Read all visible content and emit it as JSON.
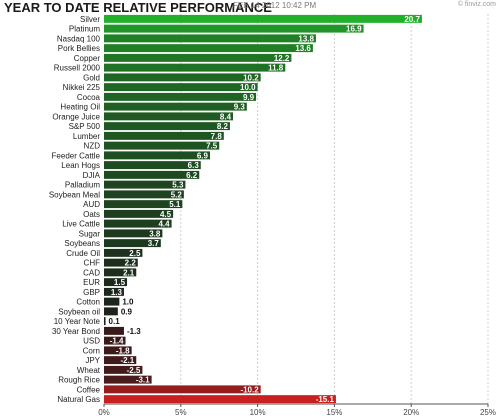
{
  "header": {
    "title": "YEAR TO DATE RELATIVE PERFORMANCE",
    "timestamp": "FEB 14 2012 10:42 PM",
    "credit": "© finviz.com"
  },
  "chart_data": {
    "type": "bar",
    "orientation": "horizontal",
    "title": "YEAR TO DATE RELATIVE PERFORMANCE",
    "xlabel": "",
    "ylabel": "",
    "xlim": [
      0,
      25
    ],
    "x_ticks": [
      0,
      5,
      10,
      15,
      20,
      25
    ],
    "x_tick_labels": [
      "0%",
      "5%",
      "10%",
      "15%",
      "20%",
      "25%"
    ],
    "grid": true,
    "categories": [
      "Silver",
      "Platinum",
      "Nasdaq 100",
      "Pork Bellies",
      "Copper",
      "Russell 2000",
      "Gold",
      "Nikkei 225",
      "Cocoa",
      "Heating Oil",
      "Orange Juice",
      "S&P 500",
      "Lumber",
      "NZD",
      "Feeder Cattle",
      "Lean Hogs",
      "DJIA",
      "Palladium",
      "Soybean Meal",
      "AUD",
      "Oats",
      "Live Cattle",
      "Sugar",
      "Soybeans",
      "Crude Oil",
      "CHF",
      "CAD",
      "EUR",
      "GBP",
      "Cotton",
      "Soybean oil",
      "10 Year Note",
      "30 Year Bond",
      "USD",
      "Corn",
      "JPY",
      "Wheat",
      "Rough Rice",
      "Coffee",
      "Natural Gas"
    ],
    "values": [
      20.7,
      16.9,
      13.8,
      13.6,
      12.2,
      11.8,
      10.2,
      10.0,
      9.9,
      9.3,
      8.4,
      8.2,
      7.8,
      7.5,
      6.9,
      6.3,
      6.2,
      5.3,
      5.2,
      5.1,
      4.5,
      4.4,
      3.8,
      3.7,
      2.5,
      2.2,
      2.1,
      1.5,
      1.3,
      1.0,
      0.9,
      0.1,
      -1.3,
      -1.4,
      -1.8,
      -2.1,
      -2.5,
      -3.1,
      -10.2,
      -15.1
    ],
    "value_labels": [
      "20.7",
      "16.9",
      "13.8",
      "13.6",
      "12.2",
      "11.8",
      "10.2",
      "10.0",
      "9.9",
      "9.3",
      "8.4",
      "8.2",
      "7.8",
      "7.5",
      "6.9",
      "6.3",
      "6.2",
      "5.3",
      "5.2",
      "5.1",
      "4.5",
      "4.4",
      "3.8",
      "3.7",
      "2.5",
      "2.2",
      "2.1",
      "1.5",
      "1.3",
      "1.0",
      "0.9",
      "0.1",
      "-1.3",
      "-1.4",
      "-1.8",
      "-2.1",
      "-2.5",
      "-3.1",
      "-10.2",
      "-15.1"
    ],
    "colors": {
      "positive_high": "#22b02a",
      "positive_low": "#1c1f1c",
      "negative_low": "#2a1a1a",
      "negative_high": "#c81f1f",
      "grid": "#d0d0d0",
      "axis": "#555555"
    }
  }
}
